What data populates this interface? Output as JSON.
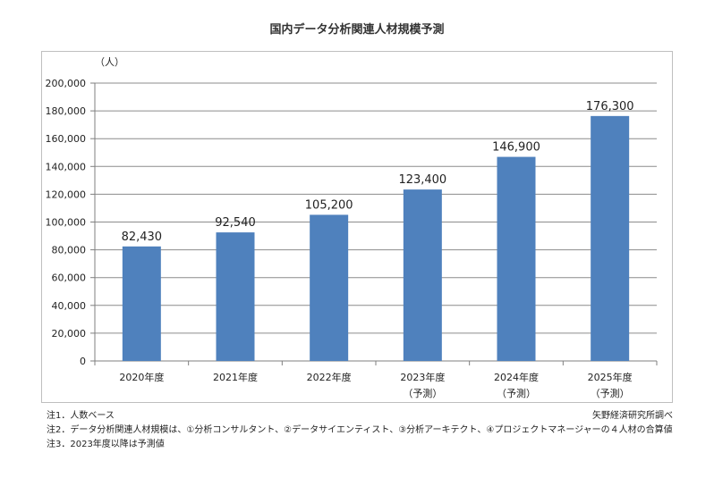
{
  "chart_data": {
    "type": "bar",
    "title": "国内データ分析関連人材規模予測",
    "unit_label": "（人）",
    "categories": [
      "2020年度",
      "2021年度",
      "2022年度",
      "2023年度",
      "2024年度",
      "2025年度"
    ],
    "category_sublabels": [
      "",
      "",
      "",
      "（予測）",
      "（予測）",
      "（予測）"
    ],
    "values": [
      82430,
      92540,
      105200,
      123400,
      146900,
      176300
    ],
    "value_labels": [
      "82,430",
      "92,540",
      "105,200",
      "123,400",
      "146,900",
      "176,300"
    ],
    "ylim": [
      0,
      200000
    ],
    "yticks": [
      0,
      20000,
      40000,
      60000,
      80000,
      100000,
      120000,
      140000,
      160000,
      180000,
      200000
    ],
    "ytick_labels": [
      "0",
      "20,000",
      "40,000",
      "60,000",
      "80,000",
      "100,000",
      "120,000",
      "140,000",
      "160,000",
      "180,000",
      "200,000"
    ],
    "grid": true,
    "bar_color": "#4f81bd"
  },
  "notes": [
    "注1．人数ベース",
    "注2．データ分析関連人材規模は、①分析コンサルタント、②データサイエンティスト、③分析アーキテクト、④プロジェクトマネージャーの４人材の合算値",
    "注3．2023年度以降は予測値"
  ],
  "source": "矢野経済研究所調べ"
}
